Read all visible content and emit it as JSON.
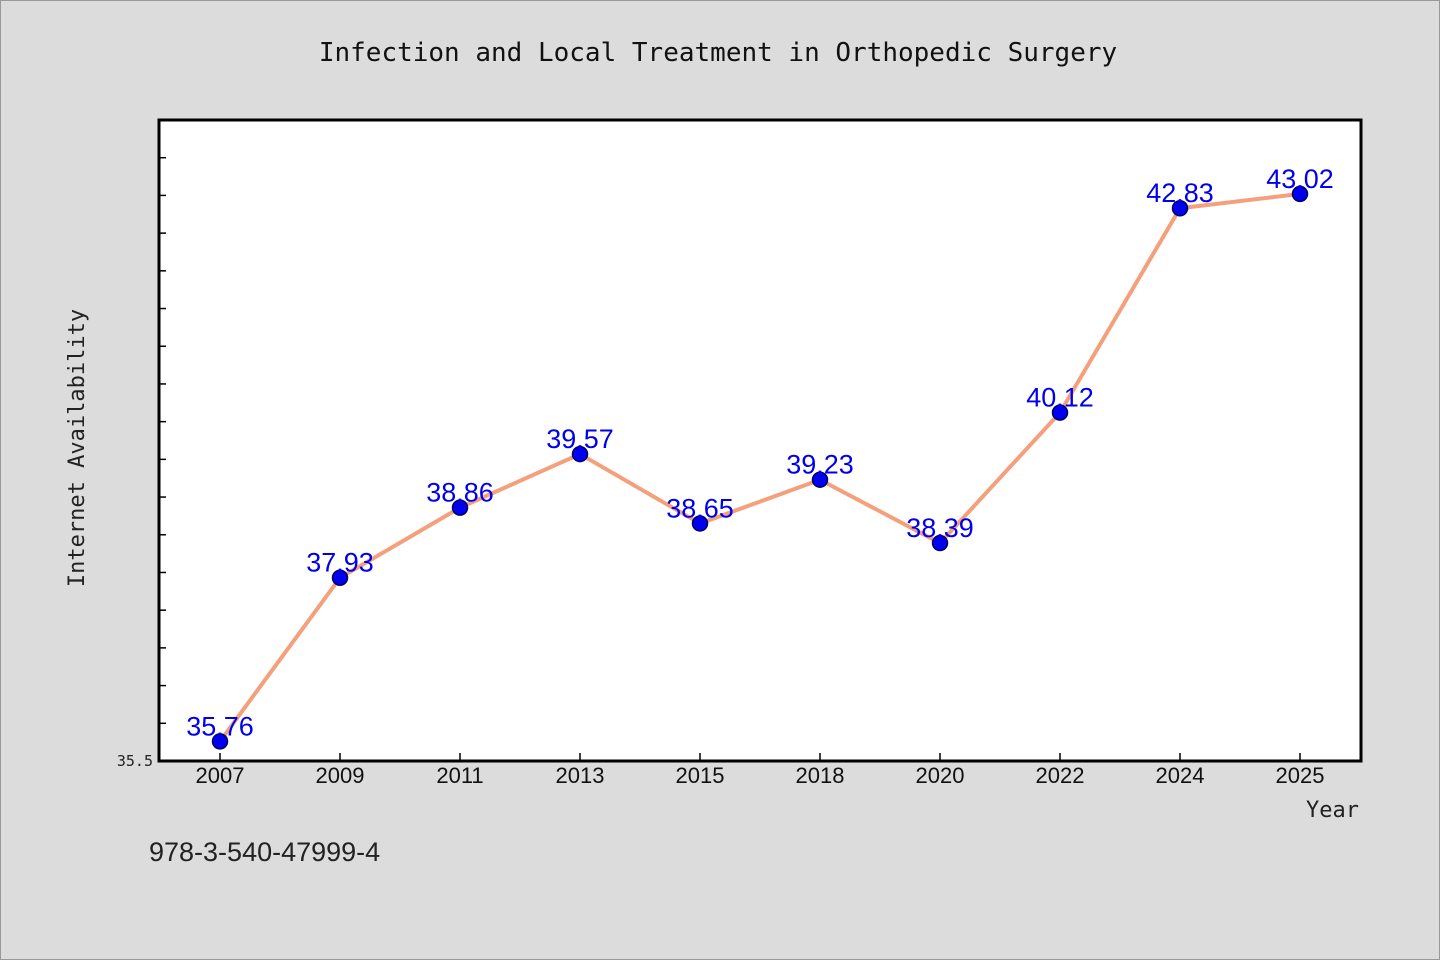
{
  "chart_data": {
    "type": "line",
    "title": "Infection and Local Treatment in Orthopedic Surgery",
    "xlabel": "Year",
    "ylabel": "Internet Availability",
    "categories": [
      "2007",
      "2009",
      "2011",
      "2013",
      "2015",
      "2018",
      "2020",
      "2022",
      "2024",
      "2025"
    ],
    "series": [
      {
        "values": [
          35.76,
          37.93,
          38.86,
          39.57,
          38.65,
          39.23,
          38.39,
          40.12,
          42.83,
          43.02
        ]
      }
    ],
    "data_labels": [
      "35.76",
      "37.93",
      "38.86",
      "39.57",
      "38.65",
      "39.23",
      "38.39",
      "40.12",
      "42.83",
      "43.02"
    ],
    "ylim": [
      35.5,
      44.0
    ],
    "ytick_labels": [
      "35.5"
    ],
    "grid": false,
    "colors": {
      "line": "#f4a07c",
      "marker": "#0000ee",
      "marker_edge": "#000066",
      "data_label": "#0000ee",
      "background": "#dcdcdc",
      "plot_area": "#ffffff"
    }
  },
  "footnote": "978-3-540-47999-4"
}
